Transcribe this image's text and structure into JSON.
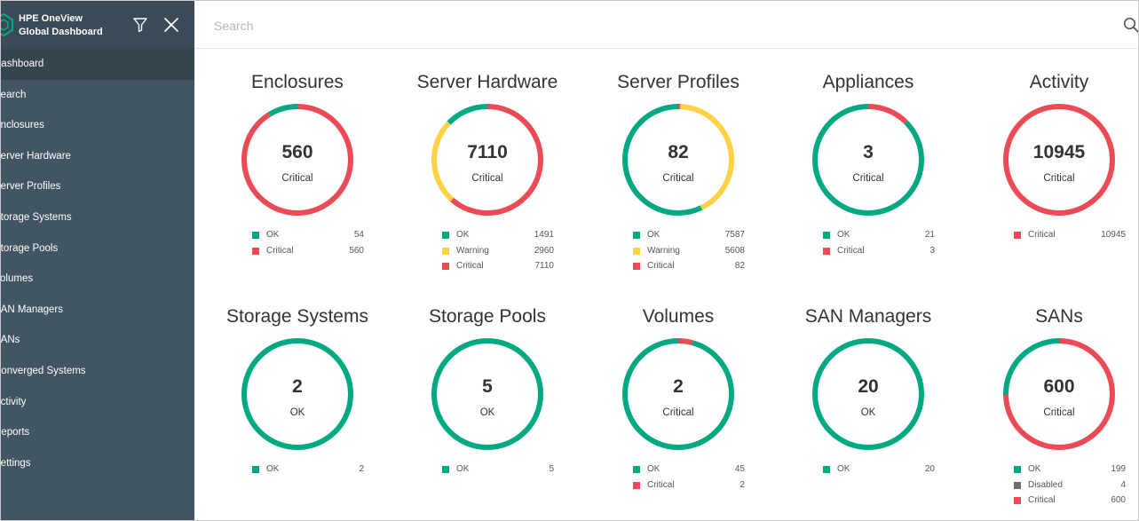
{
  "sidebar": {
    "title_line1": "HPE OneView",
    "title_line2": "Global Dashboard",
    "items": [
      {
        "label": "Dashboard",
        "active": true
      },
      {
        "label": "Search"
      },
      {
        "label": "Enclosures"
      },
      {
        "label": "Server Hardware"
      },
      {
        "label": "Server Profiles"
      },
      {
        "label": "Storage Systems"
      },
      {
        "label": "Storage Pools"
      },
      {
        "label": "Volumes"
      },
      {
        "label": "SAN Managers"
      },
      {
        "label": "SANs"
      },
      {
        "label": "Converged Systems"
      },
      {
        "label": "Activity"
      },
      {
        "label": "Reports"
      },
      {
        "label": "Settings"
      }
    ]
  },
  "search": {
    "placeholder": "Search",
    "value": ""
  },
  "colors": {
    "ok": "#01a982",
    "warning": "#ffd144",
    "critical": "#ec4a55",
    "disabled": "#6e6e6e"
  },
  "tiles": [
    {
      "title": "Enclosures",
      "value": "560",
      "status": "Critical",
      "legend": [
        {
          "label": "OK",
          "count": "54",
          "color": "#01a982"
        },
        {
          "label": "Critical",
          "count": "560",
          "color": "#ec4a55"
        }
      ]
    },
    {
      "title": "Server Hardware",
      "value": "7110",
      "status": "Critical",
      "legend": [
        {
          "label": "OK",
          "count": "1491",
          "color": "#01a982"
        },
        {
          "label": "Warning",
          "count": "2960",
          "color": "#ffd144"
        },
        {
          "label": "Critical",
          "count": "7110",
          "color": "#ec4a55"
        }
      ]
    },
    {
      "title": "Server Profiles",
      "value": "82",
      "status": "Critical",
      "legend": [
        {
          "label": "OK",
          "count": "7587",
          "color": "#01a982"
        },
        {
          "label": "Warning",
          "count": "5608",
          "color": "#ffd144"
        },
        {
          "label": "Critical",
          "count": "82",
          "color": "#ec4a55"
        }
      ]
    },
    {
      "title": "Appliances",
      "value": "3",
      "status": "Critical",
      "legend": [
        {
          "label": "OK",
          "count": "21",
          "color": "#01a982"
        },
        {
          "label": "Critical",
          "count": "3",
          "color": "#ec4a55"
        }
      ]
    },
    {
      "title": "Activity",
      "value": "10945",
      "status": "Critical",
      "legend": [
        {
          "label": "Critical",
          "count": "10945",
          "color": "#ec4a55"
        }
      ]
    },
    {
      "title": "Storage Systems",
      "value": "2",
      "status": "OK",
      "legend": [
        {
          "label": "OK",
          "count": "2",
          "color": "#01a982"
        }
      ]
    },
    {
      "title": "Storage Pools",
      "value": "5",
      "status": "OK",
      "legend": [
        {
          "label": "OK",
          "count": "5",
          "color": "#01a982"
        }
      ]
    },
    {
      "title": "Volumes",
      "value": "2",
      "status": "Critical",
      "legend": [
        {
          "label": "OK",
          "count": "45",
          "color": "#01a982"
        },
        {
          "label": "Critical",
          "count": "2",
          "color": "#ec4a55"
        }
      ]
    },
    {
      "title": "SAN Managers",
      "value": "20",
      "status": "OK",
      "legend": [
        {
          "label": "OK",
          "count": "20",
          "color": "#01a982"
        }
      ]
    },
    {
      "title": "SANs",
      "value": "600",
      "status": "Critical",
      "legend": [
        {
          "label": "OK",
          "count": "199",
          "color": "#01a982"
        },
        {
          "label": "Disabled",
          "count": "4",
          "color": "#6e6e6e"
        },
        {
          "label": "Critical",
          "count": "600",
          "color": "#ec4a55"
        }
      ]
    }
  ]
}
